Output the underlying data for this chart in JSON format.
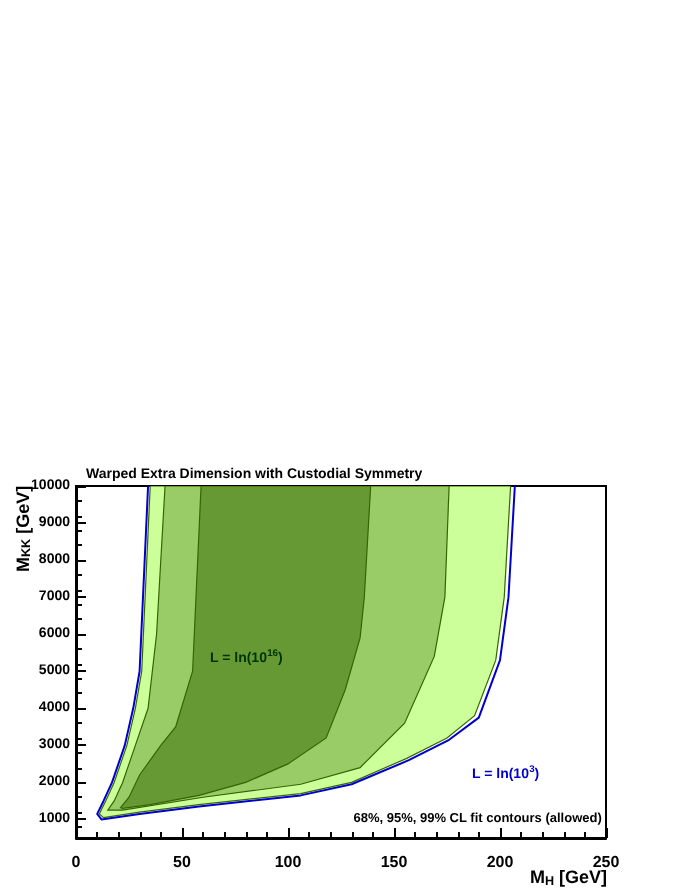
{
  "chart_data": {
    "type": "area",
    "title": "Warped Extra Dimension with Custodial Symmetry",
    "xlabel": "M$_{H}$ [GeV]",
    "ylabel": "M$_{KK}$ [GeV]",
    "xlim": [
      0,
      250
    ],
    "ylim": [
      500,
      10000
    ],
    "xticks": [
      0,
      50,
      100,
      150,
      200,
      250
    ],
    "yticks": [
      1000,
      2000,
      3000,
      4000,
      5000,
      6000,
      7000,
      8000,
      9000,
      10000
    ],
    "grid": false,
    "series": [
      {
        "color": "#ccff99",
        "x": [
          35,
          31,
          28,
          24,
          18,
          14,
          11,
          13,
          30,
          58,
          106,
          130,
          156,
          175,
          188,
          198,
          202,
          205
        ],
        "values": [
          10000,
          5000,
          4000,
          3000,
          2000,
          1500,
          1150,
          1050,
          1200,
          1400,
          1700,
          2000,
          2650,
          3200,
          3800,
          5300,
          7000,
          10000
        ]
      },
      {
        "color": "#99cc66",
        "x": [
          42,
          38,
          34,
          28,
          22,
          18,
          15,
          22,
          60,
          106,
          134,
          155,
          169,
          174,
          176
        ],
        "values": [
          10000,
          6000,
          4000,
          3000,
          2000,
          1500,
          1250,
          1250,
          1600,
          1950,
          2400,
          3600,
          5400,
          7000,
          10000
        ]
      },
      {
        "color": "#669933",
        "x": [
          59,
          55,
          47,
          40,
          30,
          25,
          21,
          22,
          35,
          58,
          80,
          100,
          118,
          127,
          134,
          136,
          139
        ],
        "values": [
          10000,
          5000,
          3500,
          3000,
          2200,
          1600,
          1320,
          1300,
          1400,
          1650,
          2000,
          2500,
          3200,
          4500,
          5900,
          7000,
          10000
        ]
      },
      {
        "type": "line",
        "color": "#0000cc",
        "x": [
          34,
          30,
          27,
          23,
          17,
          13,
          10,
          12,
          30,
          58,
          106,
          130,
          157,
          176,
          190,
          200,
          204,
          207
        ],
        "values": [
          10000,
          5000,
          4000,
          3000,
          2000,
          1500,
          1150,
          1000,
          1150,
          1350,
          1650,
          1950,
          2600,
          3150,
          3750,
          5300,
          7000,
          10000
        ]
      }
    ],
    "annotations": [
      "L = ln(10$^{16}$)",
      "L = ln(10$^{3}$)",
      "68%, 95%, 99% CL fit contours (allowed)"
    ]
  }
}
